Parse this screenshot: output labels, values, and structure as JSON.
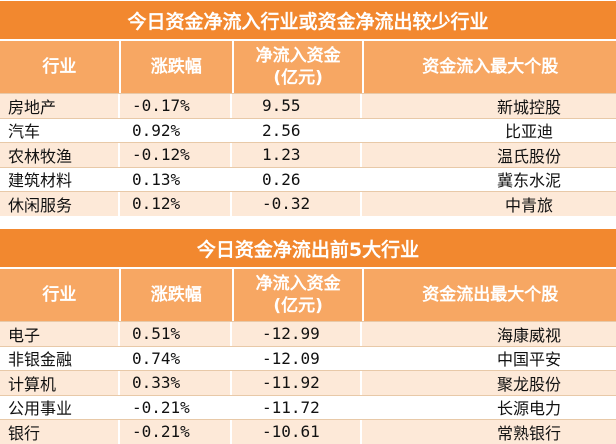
{
  "table1": {
    "title": "今日资金净流入行业或资金净流出较少行业",
    "headers": [
      "行业",
      "涨跌幅",
      "净流入资金\n(亿元)",
      "资金流入最大个股"
    ],
    "rows": [
      [
        "房地产",
        "-0.17%",
        "9.55",
        "新城控股"
      ],
      [
        "汽车",
        "0.92%",
        "2.56",
        "比亚迪"
      ],
      [
        "农林牧渔",
        "-0.12%",
        "1.23",
        "温氏股份"
      ],
      [
        "建筑材料",
        "0.13%",
        "0.26",
        "冀东水泥"
      ],
      [
        "休闲服务",
        "0.12%",
        "-0.32",
        "中青旅"
      ]
    ]
  },
  "table2": {
    "title": "今日资金净流出前5大行业",
    "headers": [
      "行业",
      "涨跌幅",
      "净流入资金\n(亿元)",
      "资金流出最大个股"
    ],
    "rows": [
      [
        "电子",
        "0.51%",
        "-12.99",
        "海康威视"
      ],
      [
        "非银金融",
        "0.74%",
        "-12.09",
        "中国平安"
      ],
      [
        "计算机",
        "0.33%",
        "-11.92",
        "聚龙股份"
      ],
      [
        "公用事业",
        "-0.21%",
        "-11.72",
        "长源电力"
      ],
      [
        "银行",
        "-0.21%",
        "-10.61",
        "常熟银行"
      ]
    ]
  },
  "colors": {
    "title_bg": "#f2882f",
    "header_bg": "#f7a763",
    "row_alt_bg": "#fde9d8"
  }
}
